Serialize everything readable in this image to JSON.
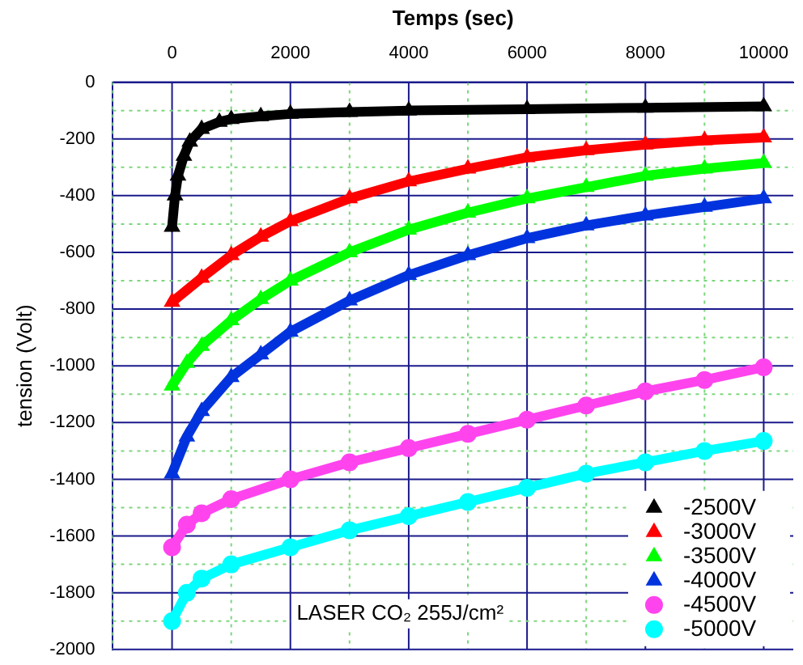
{
  "chart_data": {
    "type": "line",
    "xlabel": "Temps (sec)",
    "ylabel": "tension (Volt)",
    "xlim": [
      -1000,
      10500
    ],
    "ylim": [
      -2000,
      0
    ],
    "xticks": [
      {
        "value": -1000,
        "label": null
      },
      0,
      {
        "value": 1000,
        "label": null
      },
      2000,
      {
        "value": 3000,
        "label": null
      },
      4000,
      {
        "value": 5000,
        "label": null
      },
      6000,
      {
        "value": 7000,
        "label": null
      },
      8000,
      {
        "value": 9000,
        "label": null
      },
      10000
    ],
    "yticks": [
      0,
      {
        "value": -100,
        "label": null
      },
      -200,
      {
        "value": -300,
        "label": null
      },
      -400,
      {
        "value": -500,
        "label": null
      },
      -600,
      {
        "value": -700,
        "label": null
      },
      -800,
      {
        "value": -900,
        "label": null
      },
      -1000,
      {
        "value": -1100,
        "label": null
      },
      -1200,
      {
        "value": -1300,
        "label": null
      },
      -1400,
      {
        "value": -1500,
        "label": null
      },
      -1600,
      {
        "value": -1700,
        "label": null
      },
      -1800,
      {
        "value": -1900,
        "label": null
      },
      -2000
    ],
    "grid": true,
    "legend": "bottom right",
    "annotations": [
      "LASER CO₂ 255J/cm²"
    ],
    "series": [
      {
        "name": "-2500V",
        "color": "#000000",
        "marker": "triangle",
        "x": [
          0,
          50,
          100,
          200,
          300,
          500,
          800,
          1000,
          1500,
          2000,
          3000,
          4000,
          6000,
          8000,
          10000
        ],
        "values": [
          -510,
          -400,
          -330,
          -260,
          -210,
          -165,
          -140,
          -130,
          -120,
          -112,
          -105,
          -100,
          -95,
          -90,
          -85
        ]
      },
      {
        "name": "-3000V",
        "color": "#ff0000",
        "marker": "triangle",
        "x": [
          0,
          500,
          1000,
          1500,
          2000,
          3000,
          4000,
          5000,
          6000,
          7000,
          8000,
          9000,
          10000
        ],
        "values": [
          -775,
          -690,
          -610,
          -545,
          -490,
          -410,
          -350,
          -305,
          -265,
          -240,
          -220,
          -205,
          -195
        ]
      },
      {
        "name": "-3500V",
        "color": "#00ff00",
        "marker": "triangle",
        "x": [
          0,
          250,
          500,
          1000,
          1500,
          2000,
          3000,
          4000,
          5000,
          6000,
          7000,
          8000,
          9000,
          10000
        ],
        "values": [
          -1070,
          -990,
          -930,
          -840,
          -765,
          -700,
          -600,
          -520,
          -460,
          -410,
          -370,
          -330,
          -305,
          -285
        ]
      },
      {
        "name": "-4000V",
        "color": "#0033dd",
        "marker": "triangle",
        "x": [
          0,
          250,
          500,
          1000,
          1500,
          2000,
          3000,
          4000,
          5000,
          6000,
          7000,
          8000,
          9000,
          10000
        ],
        "values": [
          -1380,
          -1250,
          -1160,
          -1040,
          -960,
          -880,
          -770,
          -680,
          -610,
          -550,
          -505,
          -470,
          -440,
          -410
        ]
      },
      {
        "name": "-4500V",
        "color": "#ff44ee",
        "marker": "circle",
        "x": [
          0,
          250,
          500,
          1000,
          2000,
          3000,
          4000,
          5000,
          6000,
          7000,
          8000,
          9000,
          10000
        ],
        "values": [
          -1640,
          -1560,
          -1520,
          -1470,
          -1400,
          -1340,
          -1290,
          -1240,
          -1190,
          -1140,
          -1090,
          -1050,
          -1005
        ]
      },
      {
        "name": "-5000V",
        "color": "#00ffff",
        "marker": "circle",
        "x": [
          0,
          250,
          500,
          1000,
          2000,
          3000,
          4000,
          5000,
          6000,
          7000,
          8000,
          9000,
          10000
        ],
        "values": [
          -1900,
          -1800,
          -1750,
          -1700,
          -1640,
          -1580,
          -1530,
          -1480,
          -1430,
          -1380,
          -1340,
          -1300,
          -1265
        ]
      }
    ]
  }
}
